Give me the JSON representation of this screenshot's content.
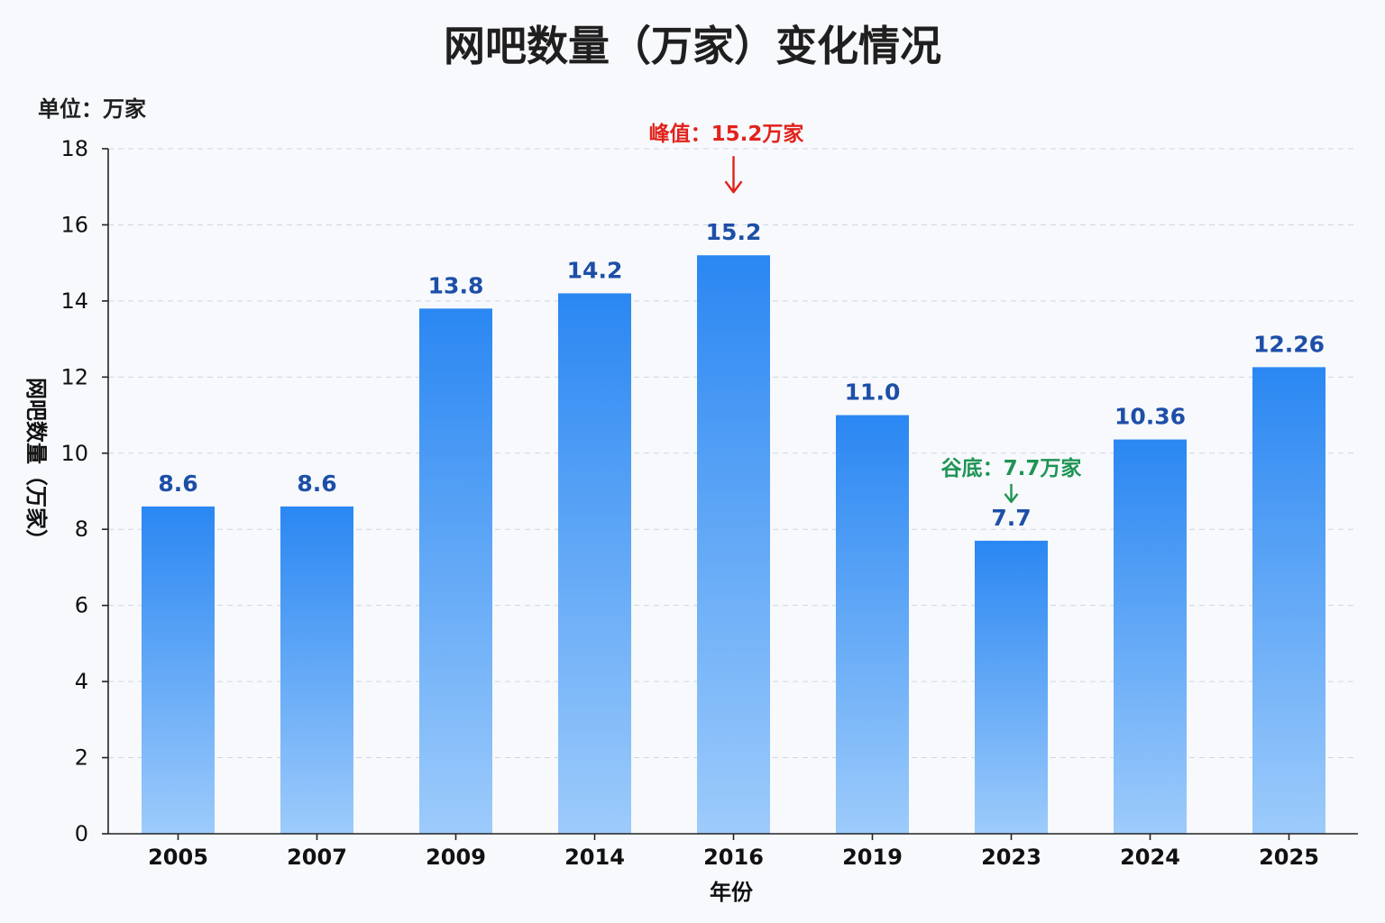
{
  "chart_data": {
    "type": "bar",
    "title": "网吧数量（万家）变化情况",
    "unit_label": "单位：万家",
    "xlabel": "年份",
    "ylabel": "网吧数量（万家）",
    "categories": [
      "2005",
      "2007",
      "2009",
      "2014",
      "2016",
      "2019",
      "2023",
      "2024",
      "2025"
    ],
    "values": [
      8.6,
      8.6,
      13.8,
      14.2,
      15.2,
      11.0,
      7.7,
      10.36,
      12.26
    ],
    "value_labels": [
      "8.6",
      "8.6",
      "13.8",
      "14.2",
      "15.2",
      "11.0",
      "7.7",
      "10.36",
      "12.26"
    ],
    "ylim": [
      0,
      18
    ],
    "yticks": [
      0,
      2,
      4,
      6,
      8,
      10,
      12,
      14,
      16,
      18
    ],
    "grid": true,
    "bar_color_top": "#2a87f2",
    "bar_color_bottom": "#9dcbfb",
    "value_label_color": "#1d4fa8",
    "annotations": [
      {
        "text": "峰值：15.2万家",
        "category": "2016",
        "value": 15.2,
        "color": "#e2221c",
        "kind": "peak"
      },
      {
        "text": "谷底：7.7万家",
        "category": "2023",
        "value": 7.7,
        "color": "#1e9454",
        "kind": "trough"
      }
    ]
  }
}
